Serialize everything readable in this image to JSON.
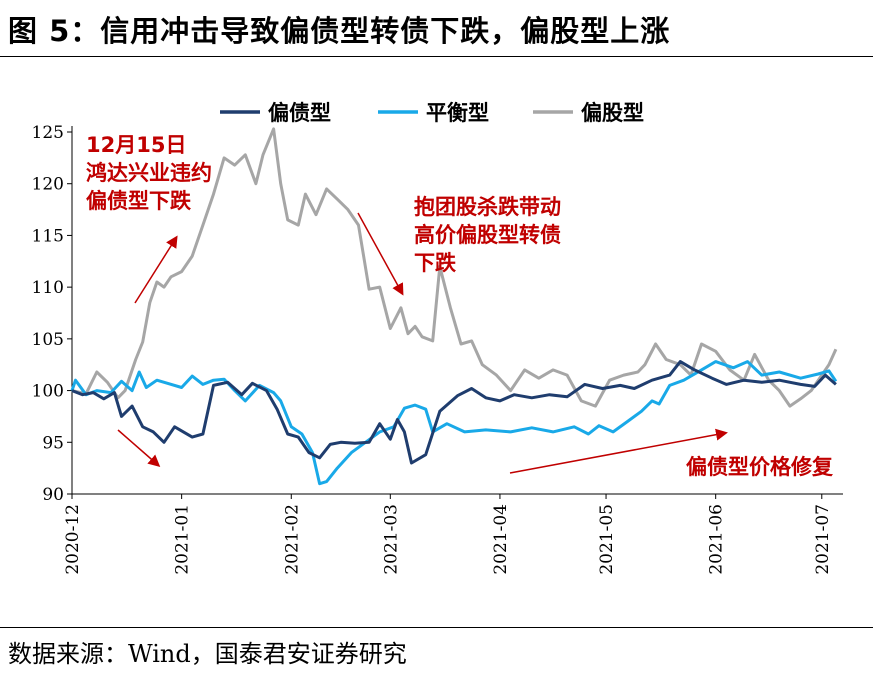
{
  "title": "图 5：信用冲击导致偏债型转债下跌，偏股型上涨",
  "source": "数据来源：Wind，国泰君安证券研究",
  "chart_data": {
    "type": "line",
    "x_ticks": [
      "2020-12",
      "2021-01",
      "2021-02",
      "2021-03",
      "2021-04",
      "2021-05",
      "2021-06",
      "2021-07"
    ],
    "ylim": [
      90,
      125
    ],
    "y_ticks": [
      90,
      95,
      100,
      105,
      110,
      115,
      120,
      125
    ],
    "legend_position": "top",
    "series": [
      {
        "name": "偏债型",
        "color": "#1f3d6e",
        "points": [
          [
            "2020-12-01",
            100.0
          ],
          [
            "2020-12-04",
            99.6
          ],
          [
            "2020-12-07",
            99.8
          ],
          [
            "2020-12-10",
            99.2
          ],
          [
            "2020-12-13",
            99.8
          ],
          [
            "2020-12-15",
            97.5
          ],
          [
            "2020-12-18",
            98.5
          ],
          [
            "2020-12-21",
            96.5
          ],
          [
            "2020-12-24",
            96.0
          ],
          [
            "2020-12-27",
            95.0
          ],
          [
            "2020-12-30",
            96.5
          ],
          [
            "2021-01-04",
            95.5
          ],
          [
            "2021-01-07",
            95.8
          ],
          [
            "2021-01-10",
            100.5
          ],
          [
            "2021-01-14",
            100.8
          ],
          [
            "2021-01-18",
            99.6
          ],
          [
            "2021-01-21",
            100.7
          ],
          [
            "2021-01-25",
            100.0
          ],
          [
            "2021-01-28",
            98.2
          ],
          [
            "2021-01-31",
            95.8
          ],
          [
            "2021-02-03",
            95.5
          ],
          [
            "2021-02-06",
            94.0
          ],
          [
            "2021-02-09",
            93.5
          ],
          [
            "2021-02-12",
            94.8
          ],
          [
            "2021-02-15",
            95.0
          ],
          [
            "2021-02-19",
            94.9
          ],
          [
            "2021-02-23",
            95.0
          ],
          [
            "2021-02-26",
            96.8
          ],
          [
            "2021-03-01",
            95.3
          ],
          [
            "2021-03-03",
            97.2
          ],
          [
            "2021-03-05",
            96.0
          ],
          [
            "2021-03-07",
            93.0
          ],
          [
            "2021-03-11",
            93.8
          ],
          [
            "2021-03-15",
            98.0
          ],
          [
            "2021-03-20",
            99.5
          ],
          [
            "2021-03-24",
            100.2
          ],
          [
            "2021-03-28",
            99.3
          ],
          [
            "2021-04-01",
            99.0
          ],
          [
            "2021-04-05",
            99.6
          ],
          [
            "2021-04-10",
            99.3
          ],
          [
            "2021-04-15",
            99.6
          ],
          [
            "2021-04-20",
            99.4
          ],
          [
            "2021-04-25",
            100.6
          ],
          [
            "2021-04-30",
            100.2
          ],
          [
            "2021-05-05",
            100.5
          ],
          [
            "2021-05-09",
            100.2
          ],
          [
            "2021-05-14",
            101.0
          ],
          [
            "2021-05-19",
            101.5
          ],
          [
            "2021-05-22",
            102.8
          ],
          [
            "2021-05-26",
            102.0
          ],
          [
            "2021-05-31",
            101.2
          ],
          [
            "2021-06-04",
            100.6
          ],
          [
            "2021-06-09",
            101.0
          ],
          [
            "2021-06-14",
            100.8
          ],
          [
            "2021-06-19",
            101.0
          ],
          [
            "2021-06-25",
            100.6
          ],
          [
            "2021-06-29",
            100.4
          ],
          [
            "2021-07-02",
            101.5
          ],
          [
            "2021-07-05",
            100.6
          ]
        ]
      },
      {
        "name": "平衡型",
        "color": "#19a9e8",
        "points": [
          [
            "2020-12-01",
            100.0
          ],
          [
            "2020-12-02",
            101.0
          ],
          [
            "2020-12-05",
            99.6
          ],
          [
            "2020-12-08",
            100.0
          ],
          [
            "2020-12-12",
            99.8
          ],
          [
            "2020-12-15",
            100.9
          ],
          [
            "2020-12-18",
            100.0
          ],
          [
            "2020-12-20",
            101.8
          ],
          [
            "2020-12-22",
            100.3
          ],
          [
            "2020-12-25",
            101.0
          ],
          [
            "2020-12-28",
            100.7
          ],
          [
            "2021-01-01",
            100.3
          ],
          [
            "2021-01-04",
            101.4
          ],
          [
            "2021-01-07",
            100.6
          ],
          [
            "2021-01-10",
            101.0
          ],
          [
            "2021-01-13",
            101.1
          ],
          [
            "2021-01-16",
            100.0
          ],
          [
            "2021-01-19",
            99.0
          ],
          [
            "2021-01-23",
            100.5
          ],
          [
            "2021-01-27",
            99.8
          ],
          [
            "2021-01-29",
            99.0
          ],
          [
            "2021-02-01",
            96.5
          ],
          [
            "2021-02-04",
            95.8
          ],
          [
            "2021-02-07",
            94.0
          ],
          [
            "2021-02-09",
            91.0
          ],
          [
            "2021-02-11",
            91.2
          ],
          [
            "2021-02-14",
            92.5
          ],
          [
            "2021-02-18",
            94.0
          ],
          [
            "2021-02-22",
            95.0
          ],
          [
            "2021-02-26",
            96.0
          ],
          [
            "2021-03-02",
            96.5
          ],
          [
            "2021-03-05",
            98.3
          ],
          [
            "2021-03-08",
            98.6
          ],
          [
            "2021-03-11",
            98.2
          ],
          [
            "2021-03-13",
            96.0
          ],
          [
            "2021-03-17",
            96.8
          ],
          [
            "2021-03-22",
            96.0
          ],
          [
            "2021-03-28",
            96.2
          ],
          [
            "2021-04-04",
            96.0
          ],
          [
            "2021-04-10",
            96.4
          ],
          [
            "2021-04-16",
            96.0
          ],
          [
            "2021-04-22",
            96.5
          ],
          [
            "2021-04-26",
            95.8
          ],
          [
            "2021-04-29",
            96.6
          ],
          [
            "2021-05-03",
            96.0
          ],
          [
            "2021-05-07",
            97.0
          ],
          [
            "2021-05-11",
            98.0
          ],
          [
            "2021-05-14",
            99.0
          ],
          [
            "2021-05-16",
            98.7
          ],
          [
            "2021-05-19",
            100.5
          ],
          [
            "2021-05-23",
            101.0
          ],
          [
            "2021-05-28",
            102.0
          ],
          [
            "2021-06-01",
            102.8
          ],
          [
            "2021-06-06",
            102.2
          ],
          [
            "2021-06-10",
            102.8
          ],
          [
            "2021-06-14",
            101.5
          ],
          [
            "2021-06-19",
            101.8
          ],
          [
            "2021-06-25",
            101.2
          ],
          [
            "2021-06-30",
            101.6
          ],
          [
            "2021-07-03",
            101.9
          ],
          [
            "2021-07-05",
            100.9
          ]
        ]
      },
      {
        "name": "偏股型",
        "color": "#a6a6a6",
        "points": [
          [
            "2020-12-01",
            100.0
          ],
          [
            "2020-12-05",
            99.7
          ],
          [
            "2020-12-08",
            101.8
          ],
          [
            "2020-12-11",
            100.8
          ],
          [
            "2020-12-14",
            99.3
          ],
          [
            "2020-12-16",
            100.0
          ],
          [
            "2020-12-19",
            103.0
          ],
          [
            "2020-12-21",
            104.7
          ],
          [
            "2020-12-23",
            108.5
          ],
          [
            "2020-12-25",
            110.5
          ],
          [
            "2020-12-27",
            110.0
          ],
          [
            "2020-12-29",
            111.0
          ],
          [
            "2021-01-01",
            111.5
          ],
          [
            "2021-01-04",
            113.0
          ],
          [
            "2021-01-07",
            116.0
          ],
          [
            "2021-01-10",
            119.0
          ],
          [
            "2021-01-13",
            122.5
          ],
          [
            "2021-01-16",
            121.8
          ],
          [
            "2021-01-19",
            122.8
          ],
          [
            "2021-01-22",
            120.0
          ],
          [
            "2021-01-24",
            122.8
          ],
          [
            "2021-01-27",
            125.3
          ],
          [
            "2021-01-29",
            120.0
          ],
          [
            "2021-01-31",
            116.5
          ],
          [
            "2021-02-03",
            116.0
          ],
          [
            "2021-02-05",
            119.0
          ],
          [
            "2021-02-08",
            117.0
          ],
          [
            "2021-02-11",
            119.5
          ],
          [
            "2021-02-14",
            118.5
          ],
          [
            "2021-02-17",
            117.5
          ],
          [
            "2021-02-20",
            116.0
          ],
          [
            "2021-02-23",
            109.8
          ],
          [
            "2021-02-26",
            110.0
          ],
          [
            "2021-03-01",
            106.0
          ],
          [
            "2021-03-04",
            108.0
          ],
          [
            "2021-03-06",
            105.5
          ],
          [
            "2021-03-08",
            106.2
          ],
          [
            "2021-03-10",
            105.2
          ],
          [
            "2021-03-13",
            104.8
          ],
          [
            "2021-03-15",
            112.0
          ],
          [
            "2021-03-18",
            108.0
          ],
          [
            "2021-03-21",
            104.5
          ],
          [
            "2021-03-24",
            104.8
          ],
          [
            "2021-03-27",
            102.5
          ],
          [
            "2021-03-31",
            101.5
          ],
          [
            "2021-04-04",
            100.0
          ],
          [
            "2021-04-08",
            102.0
          ],
          [
            "2021-04-12",
            101.2
          ],
          [
            "2021-04-16",
            102.0
          ],
          [
            "2021-04-20",
            101.5
          ],
          [
            "2021-04-24",
            99.0
          ],
          [
            "2021-04-28",
            98.5
          ],
          [
            "2021-05-02",
            101.0
          ],
          [
            "2021-05-06",
            101.5
          ],
          [
            "2021-05-10",
            101.8
          ],
          [
            "2021-05-12",
            102.5
          ],
          [
            "2021-05-15",
            104.5
          ],
          [
            "2021-05-18",
            103.0
          ],
          [
            "2021-05-22",
            102.5
          ],
          [
            "2021-05-25",
            101.5
          ],
          [
            "2021-05-28",
            104.5
          ],
          [
            "2021-06-01",
            103.8
          ],
          [
            "2021-06-05",
            102.0
          ],
          [
            "2021-06-09",
            101.0
          ],
          [
            "2021-06-12",
            103.5
          ],
          [
            "2021-06-16",
            101.0
          ],
          [
            "2021-06-19",
            100.0
          ],
          [
            "2021-06-22",
            98.5
          ],
          [
            "2021-06-25",
            99.2
          ],
          [
            "2021-06-28",
            100.0
          ],
          [
            "2021-07-01",
            101.5
          ],
          [
            "2021-07-03",
            102.5
          ],
          [
            "2021-07-05",
            104.0
          ]
        ]
      }
    ],
    "annotations": [
      {
        "id": "a1",
        "lines": [
          "12月15日",
          "鸿达兴业违约",
          "偏债型下跌"
        ],
        "color": "#c00000"
      },
      {
        "id": "a2",
        "lines": [
          "抱团股杀跌带动",
          "高价偏股型转债",
          "下跌"
        ],
        "color": "#c00000"
      },
      {
        "id": "a3",
        "lines": [
          "偏债型价格修复"
        ],
        "color": "#c00000"
      }
    ]
  }
}
